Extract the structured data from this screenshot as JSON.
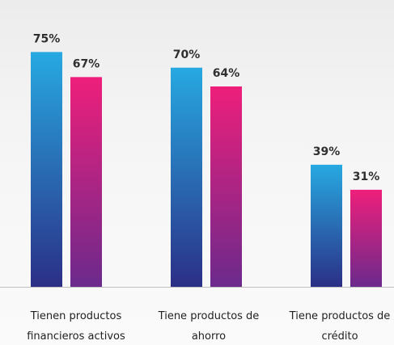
{
  "chart_data": {
    "type": "bar",
    "title": "",
    "xlabel": "",
    "ylabel": "",
    "ylim": [
      0,
      80
    ],
    "grid": false,
    "legend": "none",
    "categories": [
      [
        "Tienen productos",
        "financieros activos"
      ],
      [
        "Tiene productos de",
        "ahorro"
      ],
      [
        "Tiene productos de",
        "crédito"
      ]
    ],
    "series": [
      {
        "values": [
          75,
          70,
          39
        ],
        "labels": [
          "75%",
          "70%",
          "39%"
        ]
      },
      {
        "values": [
          67,
          64,
          31
        ],
        "labels": [
          "67%",
          "64%",
          "31%"
        ]
      }
    ],
    "colors": {
      "series_top": [
        "#27a9e1",
        "#ee1f7b"
      ],
      "series_bottom": [
        "#2b2f86",
        "#6b2a8c"
      ],
      "axis": "#bfbfbf"
    }
  }
}
